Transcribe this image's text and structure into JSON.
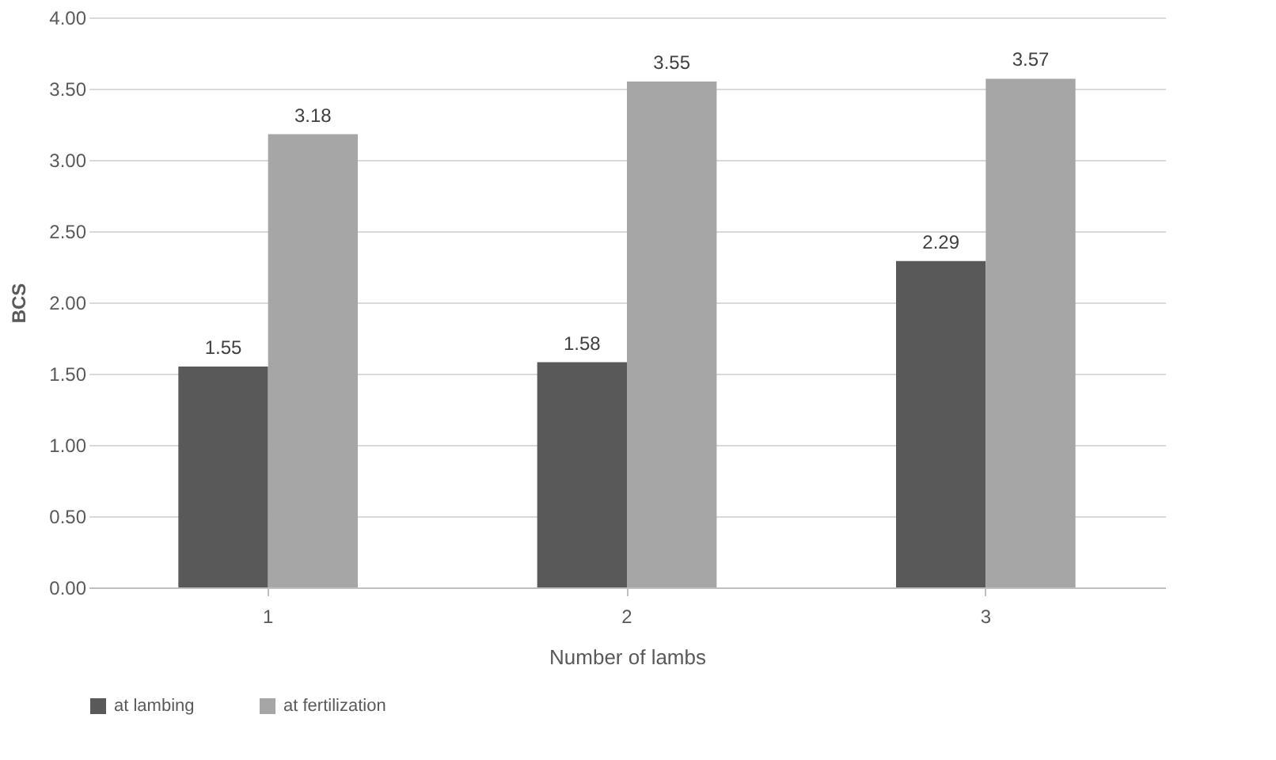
{
  "chart_data": {
    "type": "bar",
    "xlabel": "Number of lambs",
    "ylabel": "BCS",
    "categories": [
      "1",
      "2",
      "3"
    ],
    "series": [
      {
        "name": "at lambing",
        "color": "#595959",
        "values": [
          1.55,
          1.58,
          2.29
        ]
      },
      {
        "name": "at fertilization",
        "color": "#a6a6a6",
        "values": [
          3.18,
          3.55,
          3.57
        ]
      }
    ],
    "ylim": [
      0,
      4
    ],
    "yticks": [
      {
        "value": 0,
        "label": "0.00"
      },
      {
        "value": 0.5,
        "label": "0.50"
      },
      {
        "value": 1,
        "label": "1.00"
      },
      {
        "value": 1.5,
        "label": "1.50"
      },
      {
        "value": 2,
        "label": "2.00"
      },
      {
        "value": 2.5,
        "label": "2.50"
      },
      {
        "value": 3,
        "label": "3.00"
      },
      {
        "value": 3.5,
        "label": "3.50"
      },
      {
        "value": 4,
        "label": "4.00"
      }
    ],
    "grid": "y",
    "legend": "bottom",
    "data_labels": true
  }
}
